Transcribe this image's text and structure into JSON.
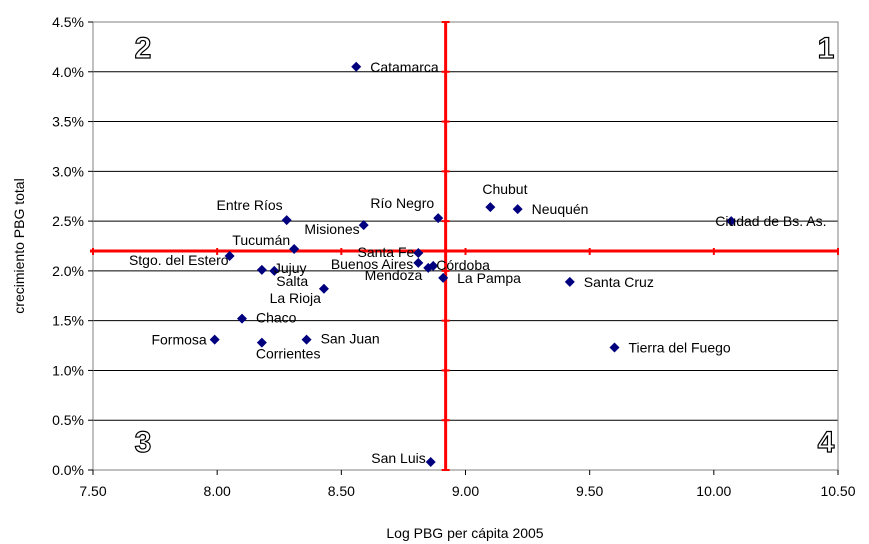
{
  "chart_data": {
    "type": "scatter",
    "xlabel": "Log PBG per cápita 2005",
    "ylabel": "crecimiento PBG total",
    "xlim": [
      7.5,
      10.5
    ],
    "ylim": [
      0.0,
      4.5
    ],
    "x_ticks": [
      "7.50",
      "8.00",
      "8.50",
      "9.00",
      "9.50",
      "10.00",
      "10.50"
    ],
    "y_ticks": [
      "0.0%",
      "0.5%",
      "1.0%",
      "1.5%",
      "2.0%",
      "2.5%",
      "3.0%",
      "3.5%",
      "4.0%",
      "4.5%"
    ],
    "grid": "horizontal",
    "marker_color": "#00007f",
    "reference_line_color": "#ff0000",
    "reference_x": 8.92,
    "reference_y": 2.2,
    "quadrant_labels": [
      "1",
      "2",
      "3",
      "4"
    ],
    "points": [
      {
        "name": "Catamarca",
        "x": 8.56,
        "y": 4.05
      },
      {
        "name": "Chubut",
        "x": 9.1,
        "y": 2.64
      },
      {
        "name": "Neuquén",
        "x": 9.21,
        "y": 2.62
      },
      {
        "name": "Ciudad de Bs. As.",
        "x": 10.07,
        "y": 2.5
      },
      {
        "name": "Entre Ríos",
        "x": 8.28,
        "y": 2.51
      },
      {
        "name": "Río Negro",
        "x": 8.89,
        "y": 2.53
      },
      {
        "name": "Misiones",
        "x": 8.59,
        "y": 2.46
      },
      {
        "name": "Tucumán",
        "x": 8.31,
        "y": 2.22
      },
      {
        "name": "Santa Fe",
        "x": 8.81,
        "y": 2.18
      },
      {
        "name": "Stgo. del Estero",
        "x": 8.05,
        "y": 2.15
      },
      {
        "name": "Buenos Aires",
        "x": 8.81,
        "y": 2.08
      },
      {
        "name": "Córdoba",
        "x": 8.87,
        "y": 2.05
      },
      {
        "name": "Mendoza",
        "x": 8.85,
        "y": 2.03
      },
      {
        "name": "Jujuy",
        "x": 8.18,
        "y": 2.01
      },
      {
        "name": "Salta",
        "x": 8.23,
        "y": 2.0
      },
      {
        "name": "La Pampa",
        "x": 8.91,
        "y": 1.93
      },
      {
        "name": "Santa Cruz",
        "x": 9.42,
        "y": 1.89
      },
      {
        "name": "La Rioja",
        "x": 8.43,
        "y": 1.82
      },
      {
        "name": "Chaco",
        "x": 8.1,
        "y": 1.52
      },
      {
        "name": "Formosa",
        "x": 7.99,
        "y": 1.31
      },
      {
        "name": "San Juan",
        "x": 8.36,
        "y": 1.31
      },
      {
        "name": "Corrientes",
        "x": 8.18,
        "y": 1.28
      },
      {
        "name": "Tierra del Fuego",
        "x": 9.6,
        "y": 1.23
      },
      {
        "name": "San Luis",
        "x": 8.86,
        "y": 0.08
      }
    ]
  }
}
